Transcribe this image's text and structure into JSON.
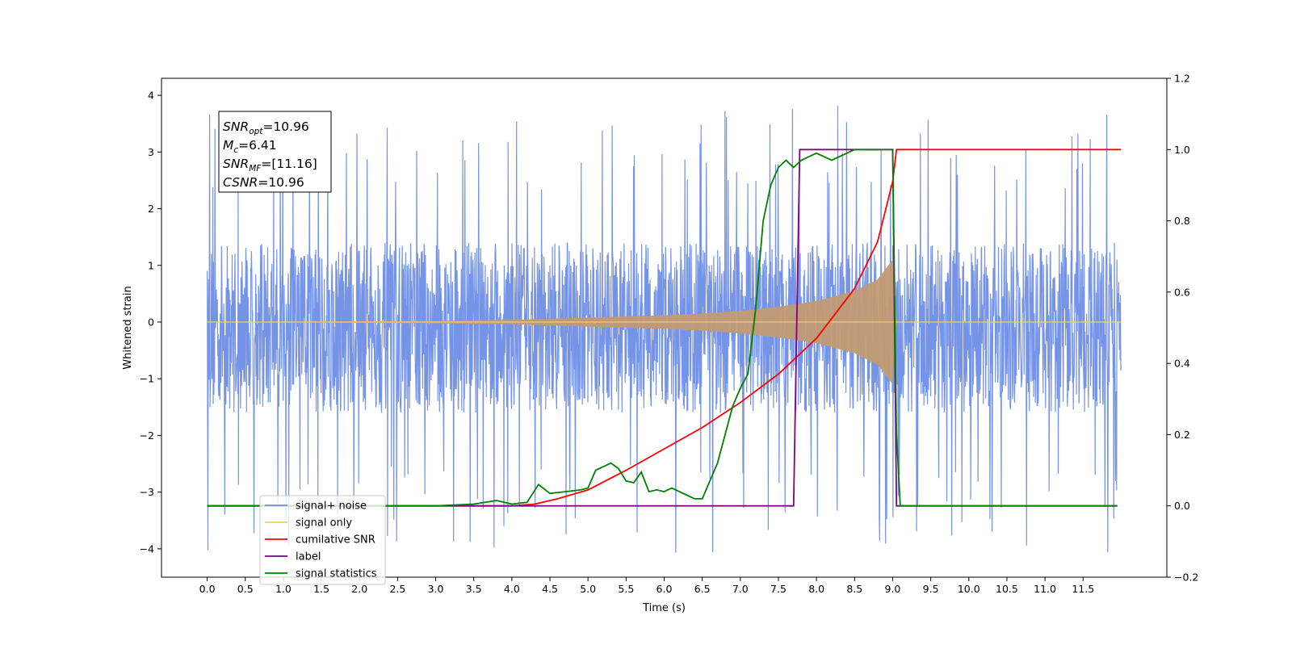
{
  "chart_data": {
    "type": "line",
    "xlabel": "Time (s)",
    "ylabel": "Whitened strain",
    "xlim": [
      -0.6,
      12.6
    ],
    "ylim": [
      -4.5,
      4.3
    ],
    "y2lim": [
      -0.2,
      1.2
    ],
    "grid": false,
    "legend_location": "lower-left",
    "x_ticks": [
      0.0,
      0.5,
      1.0,
      1.5,
      2.0,
      2.5,
      3.0,
      3.5,
      4.0,
      4.5,
      5.0,
      5.5,
      6.0,
      6.5,
      7.0,
      7.5,
      8.0,
      8.5,
      9.0,
      9.5,
      10.0,
      10.5,
      11.0,
      11.5
    ],
    "x_tick_labels": [
      "0.0",
      "0.5",
      "1.0",
      "1.5",
      "2.0",
      "2.5",
      "3.0",
      "3.5",
      "4.0",
      "4.5",
      "5.0",
      "5.5",
      "6.0",
      "6.5",
      "7.0",
      "7.5",
      "8.0",
      "8.5",
      "9.0",
      "9.5",
      "10.0",
      "10.5",
      "11.0",
      "11.5"
    ],
    "y_ticks": [
      4,
      3,
      2,
      1,
      0,
      -1,
      -2,
      -3,
      -4
    ],
    "y_tick_labels": [
      "4",
      "3",
      "2",
      "1",
      "0",
      "−1",
      "−2",
      "−3",
      "−4"
    ],
    "y2_ticks": [
      1.2,
      1.0,
      0.8,
      0.6,
      0.4,
      0.2,
      0.0,
      -0.2
    ],
    "y2_tick_labels": [
      "1.2",
      "1.0",
      "0.8",
      "0.6",
      "0.4",
      "0.2",
      "0.0",
      "−0.2"
    ],
    "annotation": [
      {
        "main": "SNR",
        "sub": "opt",
        "value": "=10.96"
      },
      {
        "main": "M",
        "sub": "c",
        "value": "=6.41"
      },
      {
        "main": "SNR",
        "sub": "MF",
        "value": "=[11.16]"
      },
      {
        "main": "CSNR",
        "sub": "",
        "value": "=10.96"
      }
    ],
    "series": [
      {
        "name": "signal+ noise",
        "axis": "left",
        "color": "#6f8ee6",
        "noise_band": [
          -1.6,
          1.4
        ],
        "noise_extremes": [
          -4.1,
          3.9
        ],
        "x_range": [
          0.0,
          12.0
        ]
      },
      {
        "name": "signal only",
        "axis": "left",
        "color": "#f5c77e",
        "envelope": {
          "x": [
            0.0,
            3.0,
            4.0,
            5.0,
            6.0,
            6.5,
            7.0,
            7.5,
            8.0,
            8.5,
            8.8,
            9.0,
            9.05
          ],
          "amp": [
            0.0,
            0.02,
            0.04,
            0.08,
            0.12,
            0.15,
            0.2,
            0.27,
            0.37,
            0.55,
            0.75,
            1.1,
            0.0
          ]
        }
      },
      {
        "name": "cumilative SNR",
        "axis": "right",
        "color": "#ff0000",
        "x": [
          0.0,
          4.0,
          4.3,
          4.6,
          5.0,
          5.5,
          6.0,
          6.5,
          7.0,
          7.5,
          8.0,
          8.5,
          8.8,
          9.0,
          9.05,
          12.0
        ],
        "y": [
          0.0,
          0.0,
          0.005,
          0.02,
          0.045,
          0.1,
          0.16,
          0.22,
          0.29,
          0.37,
          0.47,
          0.61,
          0.74,
          0.91,
          1.0,
          1.0
        ]
      },
      {
        "name": "label",
        "axis": "right",
        "color": "#800080",
        "x": [
          0.0,
          7.7,
          7.78,
          9.0,
          9.05,
          11.95
        ],
        "y": [
          0.0,
          0.0,
          1.0,
          1.0,
          0.0,
          0.0
        ]
      },
      {
        "name": "signal statistics",
        "axis": "right",
        "color": "#008000",
        "x": [
          0.0,
          3.0,
          3.5,
          3.8,
          4.0,
          4.2,
          4.35,
          4.5,
          4.7,
          4.9,
          5.0,
          5.1,
          5.2,
          5.3,
          5.4,
          5.5,
          5.6,
          5.7,
          5.8,
          5.9,
          6.0,
          6.1,
          6.2,
          6.3,
          6.4,
          6.5,
          6.6,
          6.7,
          6.8,
          6.9,
          7.0,
          7.1,
          7.2,
          7.3,
          7.4,
          7.5,
          7.6,
          7.7,
          7.8,
          8.0,
          8.2,
          8.5,
          8.7,
          8.9,
          9.0,
          9.05,
          9.1,
          9.2,
          11.95
        ],
        "y": [
          0.0,
          0.0,
          0.005,
          0.015,
          0.005,
          0.01,
          0.06,
          0.035,
          0.04,
          0.045,
          0.05,
          0.1,
          0.11,
          0.12,
          0.105,
          0.07,
          0.065,
          0.095,
          0.04,
          0.045,
          0.04,
          0.05,
          0.04,
          0.03,
          0.02,
          0.02,
          0.07,
          0.12,
          0.2,
          0.28,
          0.33,
          0.37,
          0.55,
          0.8,
          0.9,
          0.95,
          0.97,
          0.95,
          0.97,
          0.99,
          0.97,
          1.0,
          1.0,
          1.0,
          1.0,
          0.2,
          0.0,
          0.0,
          0.0
        ]
      }
    ]
  }
}
